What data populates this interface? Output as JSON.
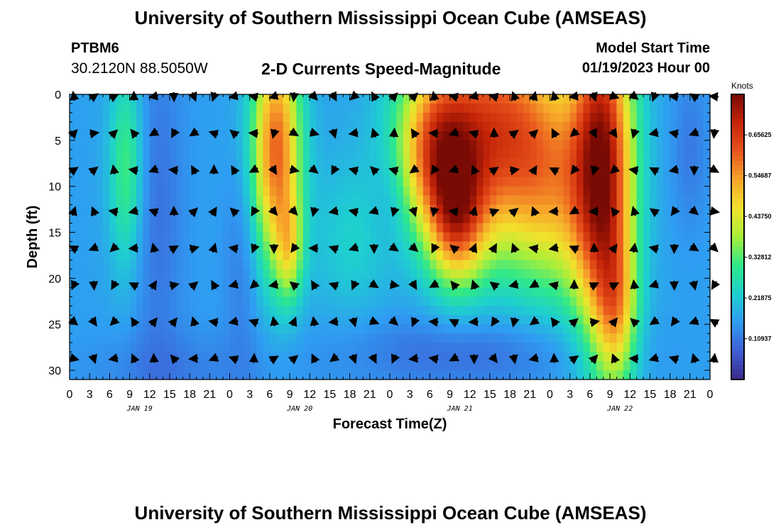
{
  "header": {
    "main_title": "University of Southern Mississippi Ocean Cube (AMSEAS)",
    "station_id": "PTBM6",
    "station_coords": "30.2120N  88.5050W",
    "chart_title": "2-D Currents Speed-Magnitude",
    "model_start_label": "Model Start Time",
    "model_start_value": "01/19/2023 Hour 00"
  },
  "footer": {
    "bottom_title": "University of Southern Mississippi Ocean Cube (AMSEAS)"
  },
  "chart_data": {
    "type": "heatmap",
    "title": "2-D Currents Speed-Magnitude",
    "xlabel": "Forecast Time(Z)",
    "ylabel": "Depth (ft)",
    "x_ticks": [
      "0",
      "3",
      "6",
      "9",
      "12",
      "15",
      "18",
      "21",
      "0",
      "3",
      "6",
      "9",
      "12",
      "15",
      "18",
      "21",
      "0",
      "3",
      "6",
      "9",
      "12",
      "15",
      "18",
      "21",
      "0",
      "3",
      "6",
      "9",
      "12",
      "15",
      "18",
      "21",
      "0"
    ],
    "x_hours_range": [
      0,
      96
    ],
    "date_labels": [
      {
        "label": "JAN 19",
        "hour": 10.5
      },
      {
        "label": "JAN 20",
        "hour": 34.5
      },
      {
        "label": "JAN 21",
        "hour": 58.5
      },
      {
        "label": "JAN 22",
        "hour": 82.5
      }
    ],
    "y_ticks": [
      "0",
      "5",
      "10",
      "15",
      "20",
      "25",
      "30"
    ],
    "ylim": [
      0,
      31
    ],
    "colorbar": {
      "label": "Knots",
      "ticks": [
        "0.10937",
        "0.21875",
        "0.32812",
        "0.43750",
        "0.54687",
        "0.65625"
      ],
      "range": [
        0,
        0.765
      ],
      "colors": [
        "#3a2a8c",
        "#3e5fd6",
        "#2f9cf2",
        "#1ecfd0",
        "#2ee88a",
        "#a8ef3a",
        "#f2e22c",
        "#f7a52a",
        "#e8541c",
        "#c42408",
        "#7a0a04"
      ]
    },
    "speed_regions": [
      {
        "name": "jan19-early-column",
        "hour_range": [
          6,
          11
        ],
        "depth_range": [
          0,
          20
        ],
        "speed": 0.33
      },
      {
        "name": "jan20-morning-core",
        "hour_range": [
          28,
          34
        ],
        "depth_range": [
          0,
          22
        ],
        "speed": 0.5
      },
      {
        "name": "jan21-jan22-core",
        "hour_range": [
          51,
          84
        ],
        "depth_range": [
          0,
          21
        ],
        "speed": 0.6
      },
      {
        "name": "jan22-core-peak",
        "hour_range": [
          77,
          83
        ],
        "depth_range": [
          0,
          30
        ],
        "speed": 0.7
      },
      {
        "name": "bottom-layer",
        "hour_range": [
          0,
          96
        ],
        "depth_range": [
          24,
          31
        ],
        "speed": 0.12
      }
    ],
    "vectors": {
      "depths": [
        0,
        4,
        8,
        12.5,
        16.5,
        20.5,
        24.5,
        28.5
      ],
      "hour_step": 3
    }
  }
}
